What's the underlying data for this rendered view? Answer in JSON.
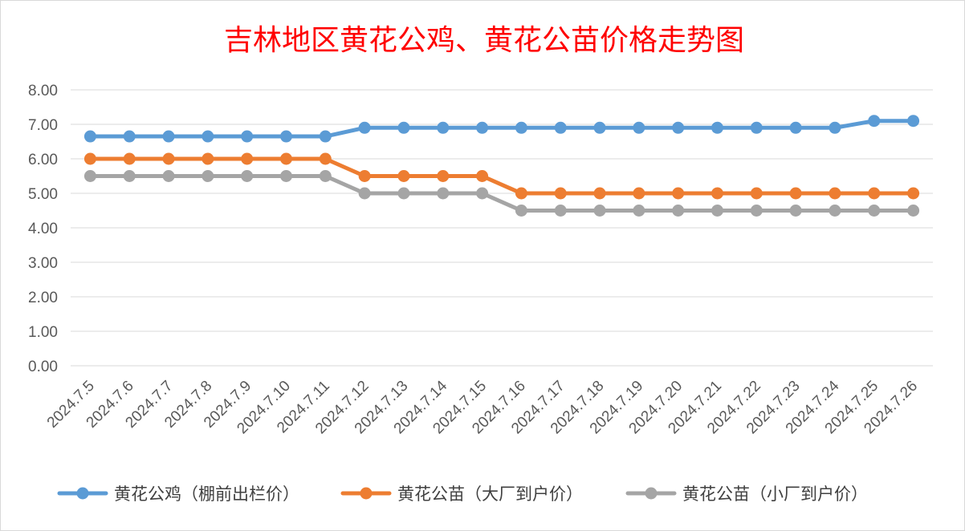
{
  "chart_data": {
    "type": "line",
    "title": "吉林地区黄花公鸡、黄花公苗价格走势图",
    "xlabel": "",
    "ylabel": "",
    "ylim": [
      0,
      8
    ],
    "yticks": [
      "0.00",
      "1.00",
      "2.00",
      "3.00",
      "4.00",
      "5.00",
      "6.00",
      "7.00",
      "8.00"
    ],
    "grid": true,
    "legend_position": "bottom",
    "categories": [
      "2024.7.5",
      "2024.7.6",
      "2024.7.7",
      "2024.7.8",
      "2024.7.9",
      "2024.7.10",
      "2024.7.11",
      "2024.7.12",
      "2024.7.13",
      "2024.7.14",
      "2024.7.15",
      "2024.7.16",
      "2024.7.17",
      "2024.7.18",
      "2024.7.19",
      "2024.7.20",
      "2024.7.21",
      "2024.7.22",
      "2024.7.23",
      "2024.7.24",
      "2024.7.25",
      "2024.7.26"
    ],
    "series": [
      {
        "name": "黄花公鸡（棚前出栏价）",
        "color": "#5b9bd5",
        "values": [
          6.65,
          6.65,
          6.65,
          6.65,
          6.65,
          6.65,
          6.65,
          6.9,
          6.9,
          6.9,
          6.9,
          6.9,
          6.9,
          6.9,
          6.9,
          6.9,
          6.9,
          6.9,
          6.9,
          6.9,
          7.1,
          7.1
        ]
      },
      {
        "name": "黄花公苗（大厂到户价）",
        "color": "#ed7d31",
        "values": [
          6.0,
          6.0,
          6.0,
          6.0,
          6.0,
          6.0,
          6.0,
          5.5,
          5.5,
          5.5,
          5.5,
          5.0,
          5.0,
          5.0,
          5.0,
          5.0,
          5.0,
          5.0,
          5.0,
          5.0,
          5.0,
          5.0
        ]
      },
      {
        "name": "黄花公苗（小厂到户价）",
        "color": "#a5a5a5",
        "values": [
          5.5,
          5.5,
          5.5,
          5.5,
          5.5,
          5.5,
          5.5,
          5.0,
          5.0,
          5.0,
          5.0,
          4.5,
          4.5,
          4.5,
          4.5,
          4.5,
          4.5,
          4.5,
          4.5,
          4.5,
          4.5,
          4.5
        ]
      }
    ]
  }
}
